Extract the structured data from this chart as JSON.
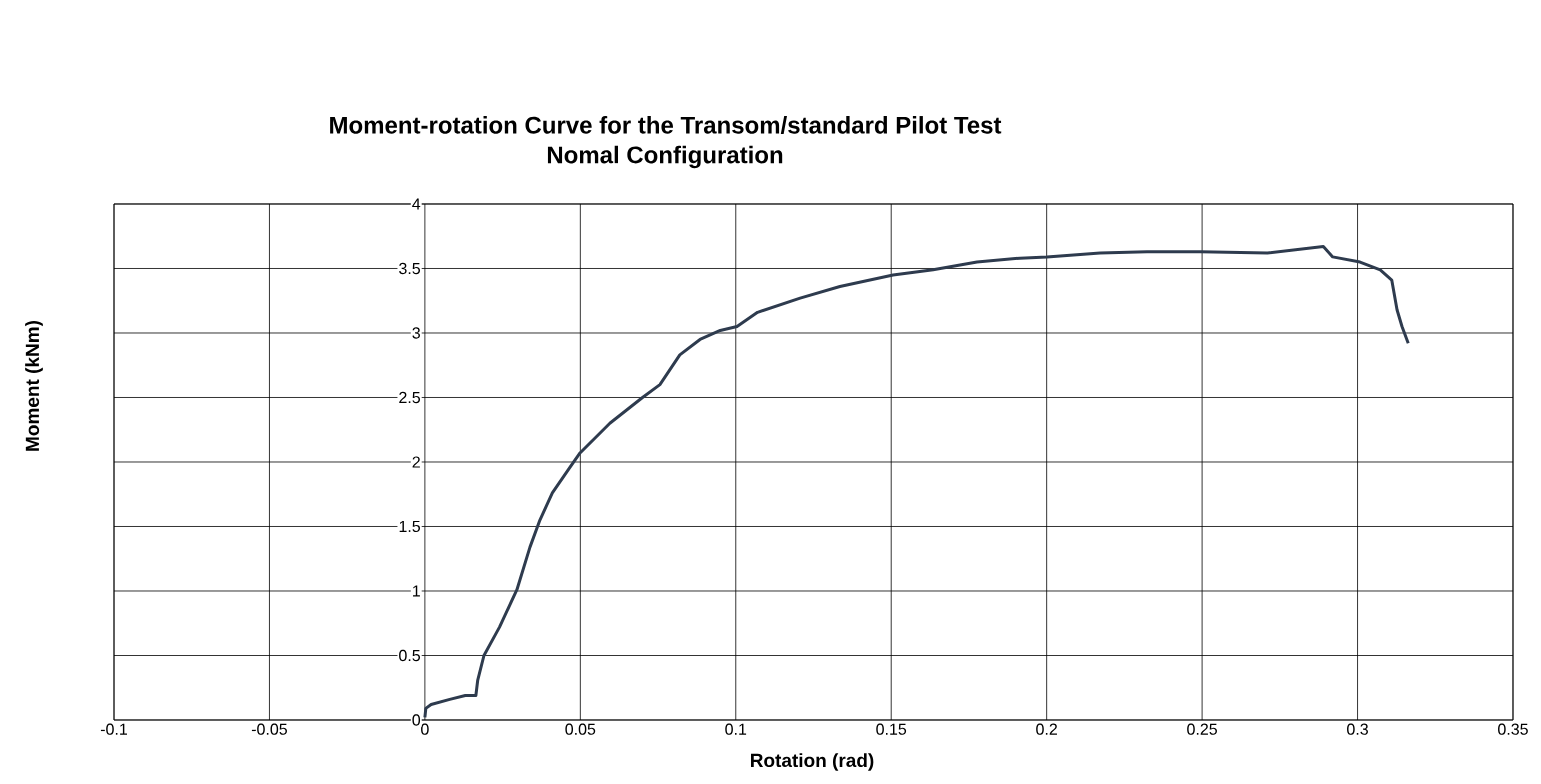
{
  "chart_data": {
    "type": "line",
    "title": "Moment-rotation Curve for the Transom/standard Pilot Test",
    "subtitle": "Nomal Configuration",
    "xlabel": "Rotation (rad)",
    "ylabel": "Moment (kNm)",
    "x": [
      0,
      0.0003,
      0.002,
      0.008,
      0.013,
      0.0164,
      0.017,
      0.019,
      0.024,
      0.0296,
      0.0338,
      0.037,
      0.041,
      0.0467,
      0.0499,
      0.0595,
      0.07,
      0.0756,
      0.082,
      0.0885,
      0.095,
      0.1004,
      0.107,
      0.1207,
      0.1335,
      0.1506,
      0.1635,
      0.1776,
      0.1914,
      0.2001,
      0.2172,
      0.2323,
      0.2494,
      0.271,
      0.289,
      0.292,
      0.3008,
      0.3073,
      0.311,
      0.3127,
      0.3143,
      0.3163
    ],
    "series": [
      {
        "color": "#2e3b4e",
        "values": [
          0.02,
          0.09,
          0.12,
          0.16,
          0.19,
          0.19,
          0.31,
          0.5,
          0.72,
          1.01,
          1.34,
          1.55,
          1.76,
          1.96,
          2.07,
          2.3,
          2.5,
          2.6,
          2.83,
          2.95,
          3.02,
          3.05,
          3.16,
          3.27,
          3.36,
          3.45,
          3.49,
          3.55,
          3.58,
          3.59,
          3.62,
          3.63,
          3.63,
          3.62,
          3.67,
          3.59,
          3.55,
          3.49,
          3.41,
          3.18,
          3.05,
          2.92
        ]
      }
    ],
    "xlim": [
      -0.1,
      0.35
    ],
    "ylim": [
      0,
      4
    ],
    "xticks": [
      -0.1,
      -0.05,
      0,
      0.05,
      0.1,
      0.15,
      0.2,
      0.25,
      0.3,
      0.35
    ],
    "yticks": [
      0,
      0.5,
      1,
      1.5,
      2,
      2.5,
      3,
      3.5,
      4
    ],
    "grid": true,
    "marker": "none",
    "line_style": "solid"
  }
}
